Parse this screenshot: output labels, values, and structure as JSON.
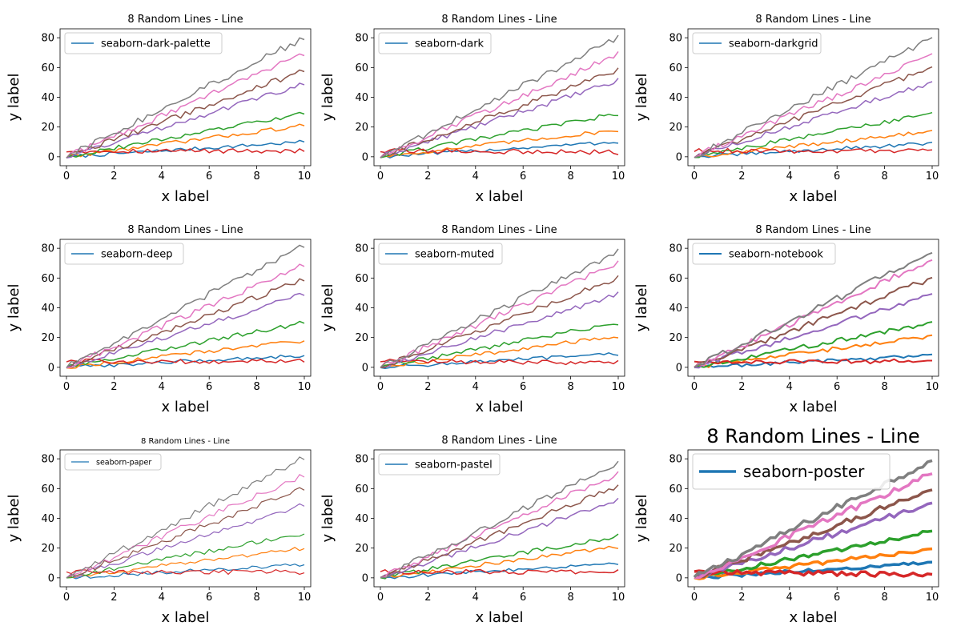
{
  "chart_data": [
    {
      "type": "line",
      "style": "seaborn-dark-palette",
      "title": "8 Random Lines - Line",
      "xlabel": "x label",
      "ylabel": "y label",
      "xlim": [
        0,
        10
      ],
      "ylim": [
        0,
        80
      ],
      "xticks": [
        0,
        2,
        4,
        6,
        8,
        10
      ],
      "yticks": [
        0,
        20,
        40,
        60,
        80
      ],
      "legend": {
        "labels": [
          "seaborn-dark-palette"
        ],
        "placement": "top-left"
      },
      "grid": false,
      "x_range": [
        0,
        10
      ],
      "series_colors": [
        "#1f77b4",
        "#ff7f0e",
        "#2ca02c",
        "#d62728",
        "#9467bd",
        "#8c564b",
        "#e377c2",
        "#7f7f7f"
      ],
      "series_endpoints": [
        [
          0,
          10
        ],
        [
          0,
          21
        ],
        [
          0,
          29
        ],
        [
          4,
          4
        ],
        [
          0,
          49
        ],
        [
          0,
          58
        ],
        [
          0,
          69
        ],
        [
          0,
          80
        ]
      ]
    },
    {
      "type": "line",
      "style": "seaborn-dark",
      "title": "8 Random Lines - Line",
      "xlabel": "x label",
      "ylabel": "y label",
      "xlim": [
        0,
        10
      ],
      "ylim": [
        0,
        80
      ],
      "xticks": [
        0,
        2,
        4,
        6,
        8,
        10
      ],
      "yticks": [
        0,
        20,
        40,
        60,
        80
      ],
      "legend": {
        "labels": [
          "seaborn-dark"
        ],
        "placement": "top-left"
      },
      "grid": false,
      "x_range": [
        0,
        10
      ],
      "series_colors": [
        "#1f77b4",
        "#ff7f0e",
        "#2ca02c",
        "#d62728",
        "#9467bd",
        "#8c564b",
        "#e377c2",
        "#7f7f7f"
      ],
      "series_endpoints": [
        [
          0,
          10
        ],
        [
          0,
          18
        ],
        [
          0,
          29
        ],
        [
          4,
          3
        ],
        [
          0,
          51
        ],
        [
          0,
          58
        ],
        [
          0,
          69
        ],
        [
          0,
          80
        ]
      ]
    },
    {
      "type": "line",
      "style": "seaborn-darkgrid",
      "title": "8 Random Lines - Line",
      "xlabel": "x label",
      "ylabel": "y label",
      "xlim": [
        0,
        10
      ],
      "ylim": [
        0,
        80
      ],
      "xticks": [
        0,
        2,
        4,
        6,
        8,
        10
      ],
      "yticks": [
        0,
        20,
        40,
        60,
        80
      ],
      "legend": {
        "labels": [
          "seaborn-darkgrid"
        ],
        "placement": "top-left"
      },
      "grid": false,
      "x_range": [
        0,
        10
      ],
      "series_colors": [
        "#1f77b4",
        "#ff7f0e",
        "#2ca02c",
        "#d62728",
        "#9467bd",
        "#8c564b",
        "#e377c2",
        "#7f7f7f"
      ],
      "series_endpoints": [
        [
          0,
          9
        ],
        [
          0,
          17
        ],
        [
          0,
          29
        ],
        [
          4,
          4
        ],
        [
          0,
          50
        ],
        [
          0,
          60
        ],
        [
          0,
          69
        ],
        [
          0,
          80
        ]
      ]
    },
    {
      "type": "line",
      "style": "seaborn-deep",
      "title": "8 Random Lines - Line",
      "xlabel": "x label",
      "ylabel": "y label",
      "xlim": [
        0,
        10
      ],
      "ylim": [
        0,
        80
      ],
      "xticks": [
        0,
        2,
        4,
        6,
        8,
        10
      ],
      "yticks": [
        0,
        20,
        40,
        60,
        80
      ],
      "legend": {
        "labels": [
          "seaborn-deep"
        ],
        "placement": "top-left"
      },
      "grid": false,
      "x_range": [
        0,
        10
      ],
      "series_colors": [
        "#1f77b4",
        "#ff7f0e",
        "#2ca02c",
        "#d62728",
        "#9467bd",
        "#8c564b",
        "#e377c2",
        "#7f7f7f"
      ],
      "series_endpoints": [
        [
          0,
          8
        ],
        [
          0,
          18
        ],
        [
          0,
          30
        ],
        [
          4,
          4
        ],
        [
          0,
          49
        ],
        [
          0,
          59
        ],
        [
          0,
          69
        ],
        [
          0,
          82
        ]
      ]
    },
    {
      "type": "line",
      "style": "seaborn-muted",
      "title": "8 Random Lines - Line",
      "xlabel": "x label",
      "ylabel": "y label",
      "xlim": [
        0,
        10
      ],
      "ylim": [
        0,
        80
      ],
      "xticks": [
        0,
        2,
        4,
        6,
        8,
        10
      ],
      "yticks": [
        0,
        20,
        40,
        60,
        80
      ],
      "legend": {
        "labels": [
          "seaborn-muted"
        ],
        "placement": "top-left"
      },
      "grid": false,
      "x_range": [
        0,
        10
      ],
      "series_colors": [
        "#1f77b4",
        "#ff7f0e",
        "#2ca02c",
        "#d62728",
        "#9467bd",
        "#8c564b",
        "#e377c2",
        "#7f7f7f"
      ],
      "series_endpoints": [
        [
          0,
          9
        ],
        [
          0,
          21
        ],
        [
          0,
          30
        ],
        [
          4,
          3
        ],
        [
          0,
          49
        ],
        [
          0,
          60
        ],
        [
          0,
          70
        ],
        [
          0,
          78
        ]
      ]
    },
    {
      "type": "line",
      "style": "seaborn-notebook",
      "title": "8 Random Lines - Line",
      "xlabel": "x label",
      "ylabel": "y label",
      "xlim": [
        0,
        10
      ],
      "ylim": [
        0,
        80
      ],
      "xticks": [
        0,
        2,
        4,
        6,
        8,
        10
      ],
      "yticks": [
        0,
        20,
        40,
        60,
        80
      ],
      "legend": {
        "labels": [
          "seaborn-notebook"
        ],
        "placement": "top-left"
      },
      "grid": false,
      "x_range": [
        0,
        10
      ],
      "series_colors": [
        "#1f77b4",
        "#ff7f0e",
        "#2ca02c",
        "#d62728",
        "#9467bd",
        "#8c564b",
        "#e377c2",
        "#7f7f7f"
      ],
      "series_endpoints": [
        [
          0,
          8
        ],
        [
          0,
          21
        ],
        [
          0,
          30
        ],
        [
          4,
          4
        ],
        [
          0,
          49
        ],
        [
          0,
          60
        ],
        [
          0,
          72
        ],
        [
          0,
          77
        ]
      ]
    },
    {
      "type": "line",
      "style": "seaborn-paper",
      "title": "8 Random Lines - Line",
      "xlabel": "x label",
      "ylabel": "y label",
      "xlim": [
        0,
        10
      ],
      "ylim": [
        0,
        80
      ],
      "xticks": [
        0,
        2,
        4,
        6,
        8,
        10
      ],
      "yticks": [
        0,
        20,
        40,
        60,
        80
      ],
      "legend": {
        "labels": [
          "seaborn-paper"
        ],
        "placement": "top-left"
      },
      "grid": false,
      "x_range": [
        0,
        10
      ],
      "series_colors": [
        "#1f77b4",
        "#ff7f0e",
        "#2ca02c",
        "#d62728",
        "#9467bd",
        "#8c564b",
        "#e377c2",
        "#7f7f7f"
      ],
      "series_endpoints": [
        [
          0,
          9
        ],
        [
          0,
          20
        ],
        [
          0,
          30
        ],
        [
          4,
          4
        ],
        [
          0,
          49
        ],
        [
          0,
          60
        ],
        [
          0,
          69
        ],
        [
          0,
          81
        ]
      ]
    },
    {
      "type": "line",
      "style": "seaborn-pastel",
      "title": "8 Random Lines - Line",
      "xlabel": "x label",
      "ylabel": "y label",
      "xlim": [
        0,
        10
      ],
      "ylim": [
        0,
        80
      ],
      "xticks": [
        0,
        2,
        4,
        6,
        8,
        10
      ],
      "yticks": [
        0,
        20,
        40,
        60,
        80
      ],
      "legend": {
        "labels": [
          "seaborn-pastel"
        ],
        "placement": "top-left"
      },
      "grid": false,
      "x_range": [
        0,
        10
      ],
      "series_colors": [
        "#1f77b4",
        "#ff7f0e",
        "#2ca02c",
        "#d62728",
        "#9467bd",
        "#8c564b",
        "#e377c2",
        "#7f7f7f"
      ],
      "series_endpoints": [
        [
          0,
          10
        ],
        [
          0,
          21
        ],
        [
          0,
          28
        ],
        [
          4,
          4
        ],
        [
          0,
          52
        ],
        [
          0,
          61
        ],
        [
          0,
          70
        ],
        [
          0,
          77
        ]
      ]
    },
    {
      "type": "line",
      "style": "seaborn-poster",
      "title": "8 Random Lines - Line",
      "xlabel": "x label",
      "ylabel": "y label",
      "xlim": [
        0,
        10
      ],
      "ylim": [
        0,
        80
      ],
      "xticks": [
        0,
        2,
        4,
        6,
        8,
        10
      ],
      "yticks": [
        0,
        20,
        40,
        60,
        80
      ],
      "legend": {
        "labels": [
          "seaborn-poster"
        ],
        "placement": "top-left"
      },
      "grid": false,
      "x_range": [
        0,
        10
      ],
      "series_colors": [
        "#1f77b4",
        "#ff7f0e",
        "#2ca02c",
        "#d62728",
        "#9467bd",
        "#8c564b",
        "#e377c2",
        "#7f7f7f"
      ],
      "series_endpoints": [
        [
          0,
          10
        ],
        [
          0,
          19
        ],
        [
          0,
          31
        ],
        [
          4,
          2
        ],
        [
          0,
          50
        ],
        [
          0,
          59
        ],
        [
          0,
          70
        ],
        [
          0,
          79
        ]
      ]
    }
  ]
}
